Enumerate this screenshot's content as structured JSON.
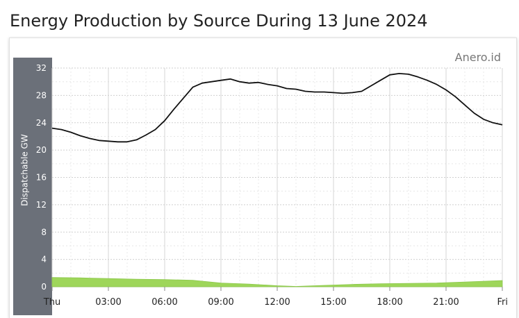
{
  "title": "Energy Production by Source During 13 June 2024",
  "watermark": "Anero.id",
  "chart_data": {
    "type": "line",
    "ylabel": "Dispatchable GW",
    "ylim": [
      0,
      32
    ],
    "yticks": [
      "0",
      "4",
      "8",
      "12",
      "16",
      "20",
      "24",
      "28",
      "32"
    ],
    "xlim": [
      0,
      24
    ],
    "xticks": [
      {
        "h": 0,
        "label": "Thu"
      },
      {
        "h": 3,
        "label": "03:00"
      },
      {
        "h": 6,
        "label": "06:00"
      },
      {
        "h": 9,
        "label": "09:00"
      },
      {
        "h": 12,
        "label": "12:00"
      },
      {
        "h": 15,
        "label": "15:00"
      },
      {
        "h": 18,
        "label": "18:00"
      },
      {
        "h": 21,
        "label": "21:00"
      },
      {
        "h": 24,
        "label": "Fri"
      }
    ],
    "grid": true,
    "colors": {
      "line": "#111111",
      "area": "#9ed65a",
      "axis_band": "#6b7079"
    },
    "series": [
      {
        "kind": "line",
        "points": [
          [
            0,
            23.2
          ],
          [
            0.5,
            23.0
          ],
          [
            1.0,
            22.6
          ],
          [
            1.5,
            22.1
          ],
          [
            2.0,
            21.7
          ],
          [
            2.5,
            21.4
          ],
          [
            3.0,
            21.3
          ],
          [
            3.5,
            21.2
          ],
          [
            4.0,
            21.2
          ],
          [
            4.5,
            21.5
          ],
          [
            5.0,
            22.2
          ],
          [
            5.5,
            23.0
          ],
          [
            6.0,
            24.3
          ],
          [
            6.5,
            26.0
          ],
          [
            7.0,
            27.6
          ],
          [
            7.5,
            29.2
          ],
          [
            8.0,
            29.8
          ],
          [
            8.5,
            30.0
          ],
          [
            9.0,
            30.2
          ],
          [
            9.5,
            30.4
          ],
          [
            10.0,
            30.0
          ],
          [
            10.5,
            29.8
          ],
          [
            11.0,
            29.9
          ],
          [
            11.5,
            29.6
          ],
          [
            12.0,
            29.4
          ],
          [
            12.5,
            29.0
          ],
          [
            13.0,
            28.9
          ],
          [
            13.5,
            28.6
          ],
          [
            14.0,
            28.5
          ],
          [
            14.5,
            28.5
          ],
          [
            15.0,
            28.4
          ],
          [
            15.5,
            28.3
          ],
          [
            16.0,
            28.4
          ],
          [
            16.5,
            28.6
          ],
          [
            17.0,
            29.4
          ],
          [
            17.5,
            30.2
          ],
          [
            18.0,
            31.0
          ],
          [
            18.5,
            31.2
          ],
          [
            19.0,
            31.1
          ],
          [
            19.5,
            30.7
          ],
          [
            20.0,
            30.2
          ],
          [
            20.5,
            29.6
          ],
          [
            21.0,
            28.8
          ],
          [
            21.5,
            27.8
          ],
          [
            22.0,
            26.6
          ],
          [
            22.5,
            25.4
          ],
          [
            23.0,
            24.5
          ],
          [
            23.5,
            24.0
          ],
          [
            24.0,
            23.7
          ]
        ]
      },
      {
        "kind": "area",
        "points": [
          [
            0,
            1.35
          ],
          [
            1.5,
            1.3
          ],
          [
            3.0,
            1.2
          ],
          [
            4.5,
            1.1
          ],
          [
            6.0,
            1.05
          ],
          [
            7.5,
            0.95
          ],
          [
            9.0,
            0.55
          ],
          [
            10.5,
            0.4
          ],
          [
            12.0,
            0.15
          ],
          [
            13.0,
            0.05
          ],
          [
            14.5,
            0.2
          ],
          [
            16.0,
            0.35
          ],
          [
            17.5,
            0.45
          ],
          [
            19.0,
            0.5
          ],
          [
            20.5,
            0.55
          ],
          [
            22.0,
            0.7
          ],
          [
            24.0,
            0.9
          ]
        ]
      }
    ]
  }
}
